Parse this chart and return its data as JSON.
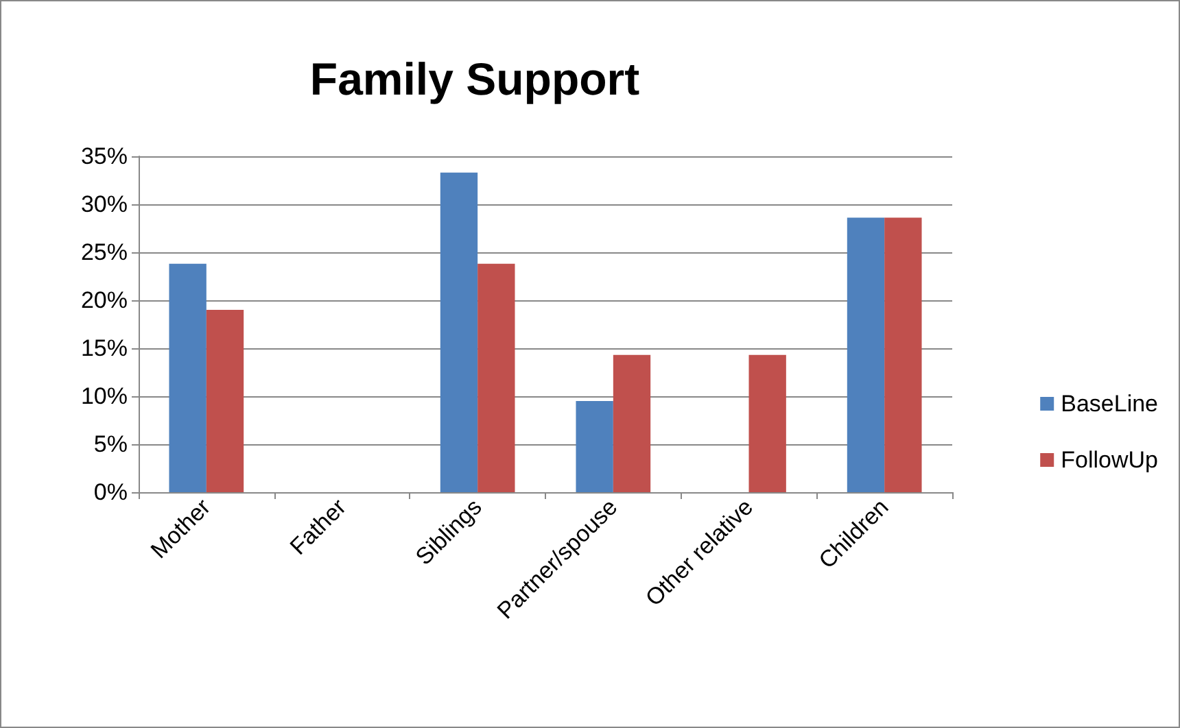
{
  "chart_data": {
    "type": "bar",
    "title": "Family Support",
    "categories": [
      "Mother",
      "Father",
      "Siblings",
      "Partner/spouse",
      "Other relative",
      "Children"
    ],
    "series": [
      {
        "name": "BaseLine",
        "color": "#4f81bd",
        "values": [
          23.8,
          0,
          33.3,
          9.5,
          0,
          28.6
        ]
      },
      {
        "name": "FollowUp",
        "color": "#c0504d",
        "values": [
          19.0,
          0,
          23.8,
          14.3,
          14.3,
          28.6
        ]
      }
    ],
    "ylim": [
      0,
      35
    ],
    "yticks": [
      {
        "value": 0,
        "label": "0%"
      },
      {
        "value": 5,
        "label": "5%"
      },
      {
        "value": 10,
        "label": "10%"
      },
      {
        "value": 15,
        "label": "15%"
      },
      {
        "value": 20,
        "label": "20%"
      },
      {
        "value": 25,
        "label": "25%"
      },
      {
        "value": 30,
        "label": "30%"
      },
      {
        "value": 35,
        "label": "35%"
      }
    ],
    "grid": "y",
    "legend": "right"
  }
}
